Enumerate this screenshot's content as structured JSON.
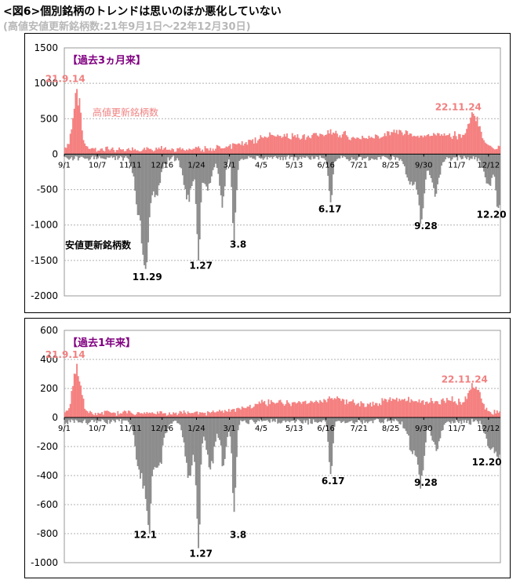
{
  "header": {
    "title": "<図6>個別銘柄のトレンドは思いのほか悪化していない",
    "subtitle": "(高値安値更新銘柄数:21年9月1日〜22年12月30日)"
  },
  "colors": {
    "high": "#f58080",
    "high_label": "#f08080",
    "low": "#8c8c8c",
    "title": "#800080"
  },
  "chart_data": [
    {
      "type": "bar",
      "title": "【過去3ヵ月来】",
      "ylim": [
        -2000,
        1500
      ],
      "yticks": [
        1500,
        1000,
        500,
        0,
        -500,
        -1000,
        -1500,
        -2000
      ],
      "xticks": [
        "9/1",
        "10/7",
        "11/11",
        "12/16",
        "1/24",
        "3/1",
        "4/5",
        "5/13",
        "6/16",
        "7/21",
        "8/25",
        "9/30",
        "11/7",
        "12/12"
      ],
      "series": [
        {
          "name": "高値更新銘柄数",
          "values": []
        },
        {
          "name": "安値更新銘柄数",
          "values": []
        }
      ],
      "high_peaks": [
        {
          "date": "21.9.14",
          "value": 920
        },
        {
          "date": "22.11.24",
          "value": 540
        }
      ],
      "annotations": [
        "21.9.14",
        "22.11.24",
        "11.29",
        "1.27",
        "3.8",
        "6.17",
        "9.28",
        "12.20"
      ],
      "low_peaks": [
        {
          "date": "11.29",
          "value": -1620
        },
        {
          "date": "1.27",
          "value": -1500
        },
        {
          "date": "3.8",
          "value": -1220
        },
        {
          "date": "6.17",
          "value": -680
        },
        {
          "date": "9.28",
          "value": -920
        },
        {
          "date": "12.20",
          "value": -760
        }
      ]
    },
    {
      "type": "bar",
      "title": "【過去1年来】",
      "ylim": [
        -1000,
        600
      ],
      "yticks": [
        600,
        400,
        200,
        0,
        -200,
        -400,
        -600,
        -800,
        -1000
      ],
      "xticks": [
        "9/1",
        "10/7",
        "11/11",
        "12/16",
        "1/24",
        "3/1",
        "4/5",
        "5/13",
        "6/16",
        "7/21",
        "8/25",
        "9/30",
        "11/7",
        "12/12"
      ],
      "series": [
        {
          "name": "高値更新銘柄数",
          "values": []
        },
        {
          "name": "安値更新銘柄数",
          "values": []
        }
      ],
      "high_peaks": [
        {
          "date": "21.9.14",
          "value": 370
        },
        {
          "date": "22.11.24",
          "value": 200
        }
      ],
      "annotations": [
        "21.9.14",
        "22.11.24",
        "12.1",
        "1.27",
        "3.8",
        "6.17",
        "9.28",
        "12.20"
      ],
      "low_peaks": [
        {
          "date": "12.1",
          "value": -740
        },
        {
          "date": "1.27",
          "value": -900
        },
        {
          "date": "3.8",
          "value": -650
        },
        {
          "date": "6.17",
          "value": -390
        },
        {
          "date": "9.28",
          "value": -400
        },
        {
          "date": "12.20",
          "value": -280
        }
      ]
    }
  ]
}
